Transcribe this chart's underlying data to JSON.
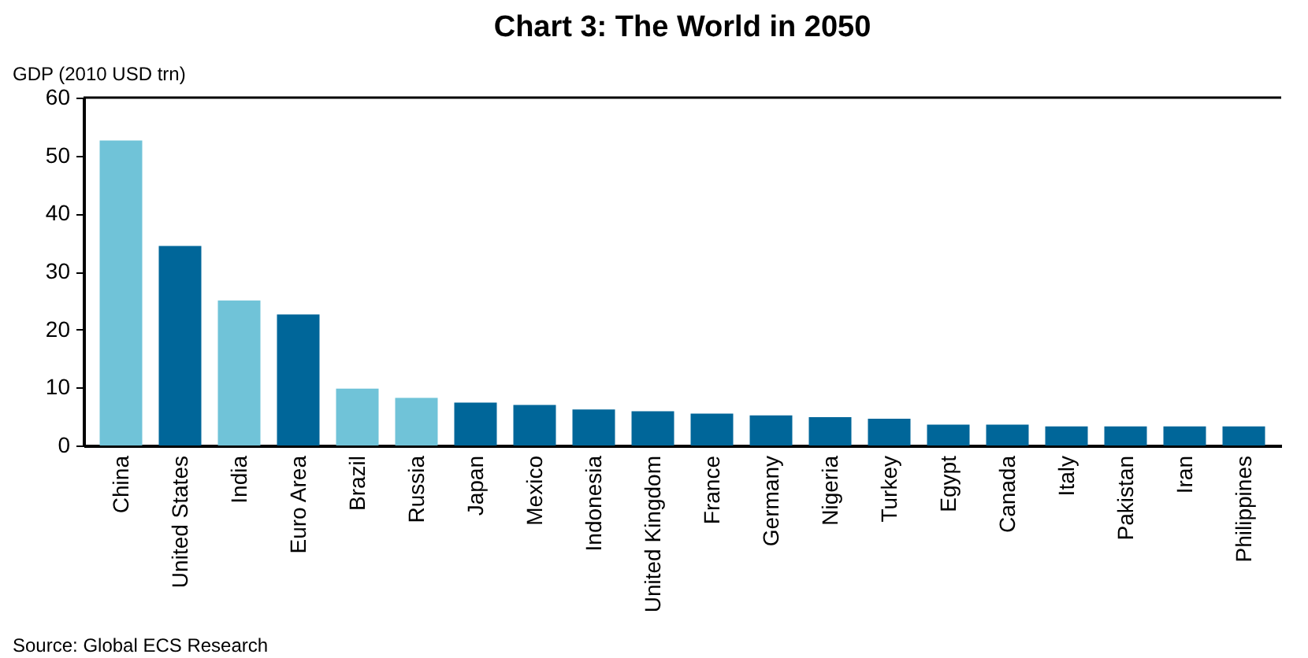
{
  "chart_data": {
    "type": "bar",
    "title": "Chart 3: The World in 2050",
    "ylabel": "GDP (2010 USD trn)",
    "categories": [
      "China",
      "United States",
      "India",
      "Euro Area",
      "Brazil",
      "Russia",
      "Japan",
      "Mexico",
      "Indonesia",
      "United Kingdom",
      "France",
      "Germany",
      "Nigeria",
      "Turkey",
      "Egypt",
      "Canada",
      "Italy",
      "Pakistan",
      "Iran",
      "Philippines"
    ],
    "values": [
      52.6,
      34.4,
      25.0,
      22.6,
      9.8,
      8.2,
      7.4,
      7.0,
      6.2,
      5.9,
      5.5,
      5.2,
      4.9,
      4.6,
      3.6,
      3.6,
      3.3,
      3.3,
      3.3,
      3.3
    ],
    "colors": [
      "#70c3d8",
      "#006699",
      "#70c3d8",
      "#006699",
      "#70c3d8",
      "#70c3d8",
      "#006699",
      "#006699",
      "#006699",
      "#006699",
      "#006699",
      "#006699",
      "#006699",
      "#006699",
      "#006699",
      "#006699",
      "#006699",
      "#006699",
      "#006699",
      "#006699"
    ],
    "ylim": [
      0,
      60
    ],
    "yticks": [
      0,
      10,
      20,
      30,
      40,
      50,
      60
    ],
    "grid": false,
    "annotations": [
      "Source: Global ECS Research"
    ]
  }
}
